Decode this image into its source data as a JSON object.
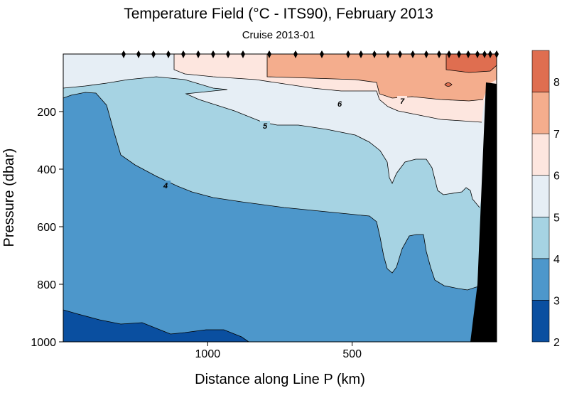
{
  "title": "Temperature Field  (°C - ITS90),  February 2013",
  "subtitle": "Cruise 2013-01",
  "chart_data": {
    "type": "contour",
    "title": "Temperature Field  (°C - ITS90),  February 2013",
    "subtitle": "Cruise 2013-01",
    "xlabel": "Distance along Line P  (km)",
    "ylabel": "Pressure  (dbar)",
    "x_axis": {
      "range": [
        1500,
        0
      ],
      "reversed": true,
      "tick_values": [
        1000,
        500
      ],
      "tick_labels": [
        "1000",
        "500"
      ]
    },
    "y_axis": {
      "range": [
        0,
        1000
      ],
      "reversed": true,
      "tick_values": [
        200,
        400,
        600,
        800,
        1000
      ],
      "tick_labels": [
        "200",
        "400",
        "600",
        "800",
        "1000"
      ]
    },
    "contour_levels": [
      2,
      3,
      4,
      5,
      6,
      7,
      8
    ],
    "contour_labels": [
      "4",
      "5",
      "6",
      "7"
    ],
    "colorbar": {
      "tick_labels": [
        "2",
        "3",
        "4",
        "5",
        "6",
        "7",
        "8"
      ],
      "colors": [
        "#0a4fa0",
        "#4d97cb",
        "#a6d3e3",
        "#e6eef5",
        "#fde6df",
        "#f4ad8d",
        "#df6e50"
      ]
    },
    "bathymetry_color": "#000000",
    "station_marker": "diamond",
    "station_count": 27
  }
}
